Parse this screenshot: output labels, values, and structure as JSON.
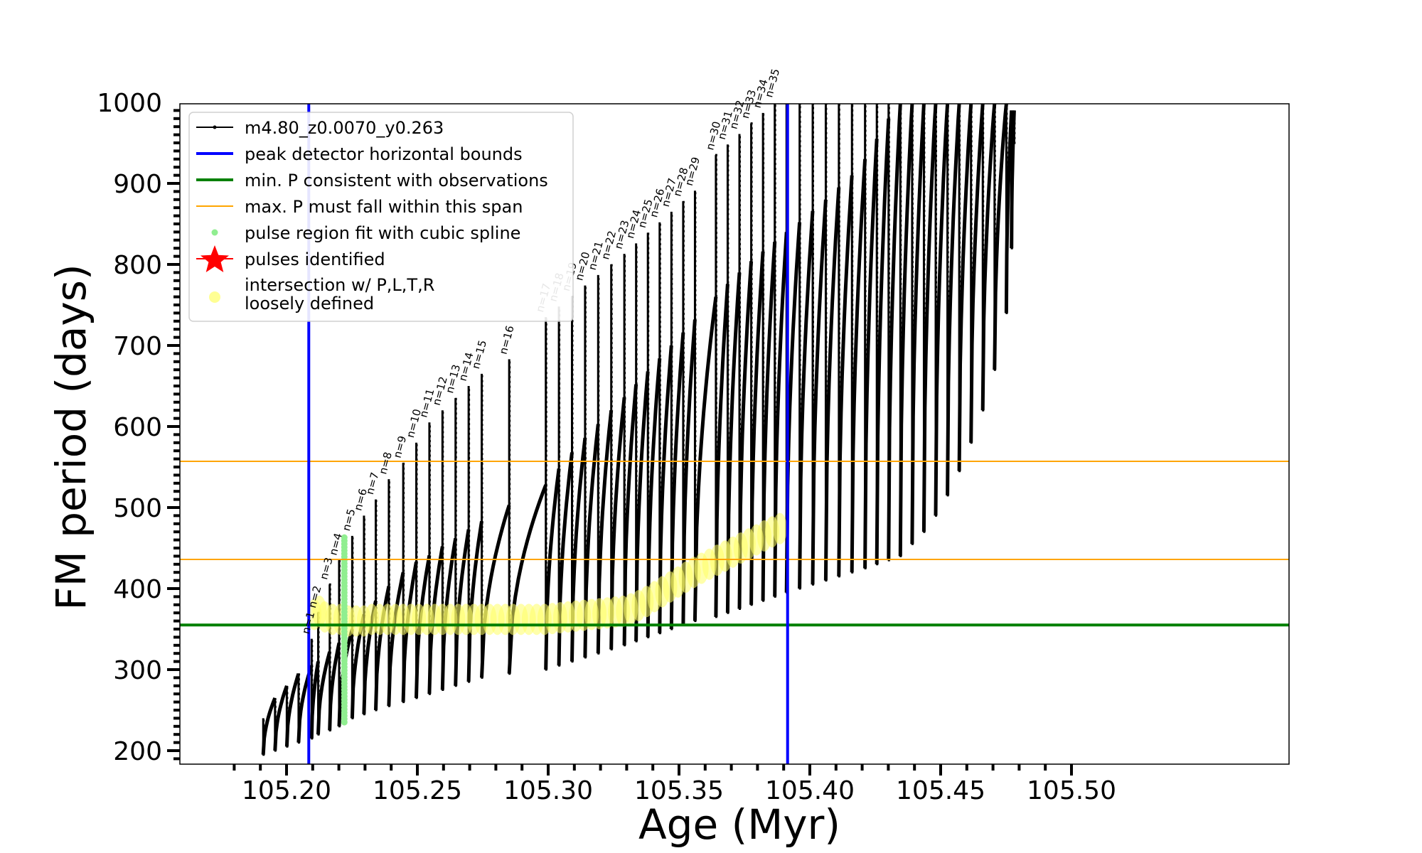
{
  "chart_data": {
    "type": "line",
    "xlabel": "Age (Myr)",
    "ylabel": "FM period (days)",
    "xlim": [
      105.1785,
      105.5125
    ],
    "ylim": [
      183,
      1000
    ],
    "x_ticks": [
      "105.20",
      "105.25",
      "105.30",
      "105.35",
      "105.40",
      "105.45",
      "105.50"
    ],
    "x_tick_values": [
      105.2,
      105.25,
      105.3,
      105.35,
      105.4,
      105.45,
      105.5
    ],
    "y_ticks": [
      "200",
      "300",
      "400",
      "500",
      "600",
      "700",
      "800",
      "900",
      "1000"
    ],
    "y_tick_values": [
      200,
      300,
      400,
      500,
      600,
      700,
      800,
      900,
      1000
    ],
    "legend": {
      "placement": "top-left",
      "entries": [
        {
          "label": "m4.80_z0.0070_y0.263",
          "color": "#000000",
          "kind": "line-marker"
        },
        {
          "label": "peak detector horizontal bounds",
          "color": "#0000ff",
          "kind": "line"
        },
        {
          "label": "min. P consistent with observations",
          "color": "#008000",
          "kind": "line"
        },
        {
          "label": "max. P must fall within this span",
          "color": "#ffa500",
          "kind": "thin-line"
        },
        {
          "label": "pulse region fit with cubic spline",
          "color": "#90ee90",
          "kind": "dot"
        },
        {
          "label": "pulses identified",
          "color": "#ff0000",
          "kind": "star"
        },
        {
          "label": "intersection w/ P,L,T,R\nloosely defined",
          "color": "#ffff66",
          "kind": "circle"
        }
      ]
    },
    "vertical_lines": {
      "color": "#0000ff",
      "x": [
        105.2085,
        105.3915
      ]
    },
    "min_period_line": {
      "color": "#008000",
      "y": 355
    },
    "max_period_span": {
      "color": "#ffa500",
      "y": [
        436,
        557
      ]
    },
    "series": [
      {
        "name": "m4.80_z0.0070_y0.263",
        "color": "#000000",
        "pulses": [
          {
            "x": 105.1911,
            "min": 195,
            "max": 240,
            "base": 240
          },
          {
            "x": 105.1956,
            "min": 200,
            "max": 265,
            "base": 265
          },
          {
            "x": 105.2001,
            "min": 205,
            "max": 280,
            "base": 280
          },
          {
            "x": 105.2046,
            "min": 210,
            "max": 295,
            "base": 295
          },
          {
            "x": 105.2096,
            "min": 215,
            "max": 338,
            "base": 305,
            "label": "n=1"
          },
          {
            "x": 105.2121,
            "min": 220,
            "max": 370,
            "base": 310,
            "label": "n=2"
          },
          {
            "x": 105.2165,
            "min": 225,
            "max": 405,
            "base": 322,
            "label": "n=3"
          },
          {
            "x": 105.2201,
            "min": 230,
            "max": 435,
            "base": 333,
            "label": "n=4"
          },
          {
            "x": 105.2251,
            "min": 240,
            "max": 465,
            "base": 350,
            "label": "n=5"
          },
          {
            "x": 105.2296,
            "min": 245,
            "max": 490,
            "base": 368,
            "label": "n=6"
          },
          {
            "x": 105.2341,
            "min": 250,
            "max": 510,
            "base": 385,
            "label": "n=7"
          },
          {
            "x": 105.2391,
            "min": 255,
            "max": 535,
            "base": 403,
            "label": "n=8"
          },
          {
            "x": 105.2446,
            "min": 260,
            "max": 555,
            "base": 420,
            "label": "n=9"
          },
          {
            "x": 105.2496,
            "min": 265,
            "max": 580,
            "base": 433,
            "label": "n=10"
          },
          {
            "x": 105.2546,
            "min": 270,
            "max": 605,
            "base": 441,
            "label": "n=11"
          },
          {
            "x": 105.2596,
            "min": 275,
            "max": 620,
            "base": 452,
            "label": "n=12"
          },
          {
            "x": 105.2646,
            "min": 280,
            "max": 635,
            "base": 462,
            "label": "n=13"
          },
          {
            "x": 105.2696,
            "min": 285,
            "max": 650,
            "base": 473,
            "label": "n=14"
          },
          {
            "x": 105.2746,
            "min": 290,
            "max": 665,
            "base": 483,
            "label": "n=15"
          },
          {
            "x": 105.2851,
            "min": 295,
            "max": 683,
            "base": 503,
            "label": "n=16"
          },
          {
            "x": 105.2991,
            "min": 300,
            "max": 735,
            "base": 528,
            "label": "n=17"
          },
          {
            "x": 105.3041,
            "min": 305,
            "max": 748,
            "base": 548,
            "label": "n=18"
          },
          {
            "x": 105.3091,
            "min": 310,
            "max": 761,
            "base": 568,
            "label": "n=19"
          },
          {
            "x": 105.3141,
            "min": 315,
            "max": 774,
            "base": 586,
            "label": "n=20"
          },
          {
            "x": 105.3191,
            "min": 320,
            "max": 787,
            "base": 603,
            "label": "n=21"
          },
          {
            "x": 105.3241,
            "min": 325,
            "max": 800,
            "base": 620,
            "label": "n=22"
          },
          {
            "x": 105.3291,
            "min": 330,
            "max": 813,
            "base": 636,
            "label": "n=23"
          },
          {
            "x": 105.3336,
            "min": 335,
            "max": 826,
            "base": 652,
            "label": "n=24"
          },
          {
            "x": 105.3381,
            "min": 340,
            "max": 839,
            "base": 668,
            "label": "n=25"
          },
          {
            "x": 105.3426,
            "min": 345,
            "max": 852,
            "base": 684,
            "label": "n=26"
          },
          {
            "x": 105.3471,
            "min": 350,
            "max": 865,
            "base": 700,
            "label": "n=27"
          },
          {
            "x": 105.3516,
            "min": 355,
            "max": 878,
            "base": 716,
            "label": "n=28"
          },
          {
            "x": 105.3561,
            "min": 360,
            "max": 891,
            "base": 732,
            "label": "n=29"
          },
          {
            "x": 105.3641,
            "min": 365,
            "max": 935,
            "base": 760,
            "label": "n=30"
          },
          {
            "x": 105.3686,
            "min": 370,
            "max": 948,
            "base": 776,
            "label": "n=31"
          },
          {
            "x": 105.3731,
            "min": 375,
            "max": 961,
            "base": 790,
            "label": "n=32"
          },
          {
            "x": 105.3776,
            "min": 380,
            "max": 974,
            "base": 804,
            "label": "n=33"
          },
          {
            "x": 105.3821,
            "min": 385,
            "max": 987,
            "base": 816,
            "label": "n=34"
          },
          {
            "x": 105.3866,
            "min": 390,
            "max": 1000,
            "base": 828,
            "label": "n=35"
          },
          {
            "x": 105.3911,
            "min": 395,
            "max": 1000,
            "base": 840
          },
          {
            "x": 105.3961,
            "min": 400,
            "max": 1000,
            "base": 852
          },
          {
            "x": 105.4011,
            "min": 405,
            "max": 1000,
            "base": 866
          },
          {
            "x": 105.4061,
            "min": 410,
            "max": 1000,
            "base": 880
          },
          {
            "x": 105.4111,
            "min": 415,
            "max": 1000,
            "base": 895
          },
          {
            "x": 105.4161,
            "min": 420,
            "max": 1000,
            "base": 910
          },
          {
            "x": 105.4211,
            "min": 425,
            "max": 1000,
            "base": 930
          },
          {
            "x": 105.4256,
            "min": 430,
            "max": 1000,
            "base": 955
          },
          {
            "x": 105.4301,
            "min": 435,
            "max": 1000,
            "base": 980
          },
          {
            "x": 105.4346,
            "min": 440,
            "max": 1000,
            "base": 1000
          },
          {
            "x": 105.4391,
            "min": 455,
            "max": 1000,
            "base": 1000
          },
          {
            "x": 105.4436,
            "min": 470,
            "max": 1000,
            "base": 1000
          },
          {
            "x": 105.4481,
            "min": 490,
            "max": 1000,
            "base": 1000
          },
          {
            "x": 105.4526,
            "min": 515,
            "max": 1000,
            "base": 1000
          },
          {
            "x": 105.4571,
            "min": 545,
            "max": 1000,
            "base": 1000
          },
          {
            "x": 105.4616,
            "min": 580,
            "max": 1000,
            "base": 1000
          },
          {
            "x": 105.4661,
            "min": 620,
            "max": 1000,
            "base": 1000
          },
          {
            "x": 105.4706,
            "min": 670,
            "max": 1000,
            "base": 1000
          },
          {
            "x": 105.4751,
            "min": 740,
            "max": 1000,
            "base": 1000
          },
          {
            "x": 105.4771,
            "min": 820,
            "max": 990,
            "base": 990
          },
          {
            "x": 105.4781,
            "min": 950,
            "max": 990,
            "base": 990
          }
        ]
      },
      {
        "name": "pulse region fit with cubic spline",
        "color": "#90ee90",
        "x": 105.2221,
        "y_range": [
          235,
          465
        ]
      },
      {
        "name": "intersection w/ P,L,T,R loosely defined",
        "color": "#ffff66",
        "points": [
          {
            "x": 105.2106,
            "y": 368
          },
          {
            "x": 105.2126,
            "y": 372
          },
          {
            "x": 105.2146,
            "y": 365
          },
          {
            "x": 105.2176,
            "y": 362
          },
          {
            "x": 105.2206,
            "y": 362
          },
          {
            "x": 105.2236,
            "y": 360
          },
          {
            "x": 105.2266,
            "y": 360
          },
          {
            "x": 105.2296,
            "y": 360
          },
          {
            "x": 105.2326,
            "y": 362
          },
          {
            "x": 105.2356,
            "y": 362
          },
          {
            "x": 105.2386,
            "y": 362
          },
          {
            "x": 105.2416,
            "y": 362
          },
          {
            "x": 105.2446,
            "y": 362
          },
          {
            "x": 105.2476,
            "y": 362
          },
          {
            "x": 105.2506,
            "y": 362
          },
          {
            "x": 105.2536,
            "y": 362
          },
          {
            "x": 105.2566,
            "y": 362
          },
          {
            "x": 105.2596,
            "y": 362
          },
          {
            "x": 105.2626,
            "y": 362
          },
          {
            "x": 105.2656,
            "y": 362
          },
          {
            "x": 105.2686,
            "y": 362
          },
          {
            "x": 105.2716,
            "y": 362
          },
          {
            "x": 105.2746,
            "y": 362
          },
          {
            "x": 105.2776,
            "y": 362
          },
          {
            "x": 105.2806,
            "y": 362
          },
          {
            "x": 105.2836,
            "y": 362
          },
          {
            "x": 105.2866,
            "y": 362
          },
          {
            "x": 105.2896,
            "y": 362
          },
          {
            "x": 105.2926,
            "y": 362
          },
          {
            "x": 105.2956,
            "y": 362
          },
          {
            "x": 105.2986,
            "y": 362
          },
          {
            "x": 105.3016,
            "y": 363
          },
          {
            "x": 105.3046,
            "y": 364
          },
          {
            "x": 105.3076,
            "y": 365
          },
          {
            "x": 105.3106,
            "y": 366
          },
          {
            "x": 105.3136,
            "y": 367
          },
          {
            "x": 105.3166,
            "y": 368
          },
          {
            "x": 105.3196,
            "y": 369
          },
          {
            "x": 105.3226,
            "y": 370
          },
          {
            "x": 105.3256,
            "y": 371
          },
          {
            "x": 105.3286,
            "y": 372
          },
          {
            "x": 105.3316,
            "y": 375
          },
          {
            "x": 105.3346,
            "y": 379
          },
          {
            "x": 105.3376,
            "y": 384
          },
          {
            "x": 105.3406,
            "y": 390
          },
          {
            "x": 105.3436,
            "y": 396
          },
          {
            "x": 105.3466,
            "y": 402
          },
          {
            "x": 105.3496,
            "y": 408
          },
          {
            "x": 105.3526,
            "y": 414
          },
          {
            "x": 105.3556,
            "y": 420
          },
          {
            "x": 105.3586,
            "y": 425
          },
          {
            "x": 105.3616,
            "y": 430
          },
          {
            "x": 105.3646,
            "y": 435
          },
          {
            "x": 105.3676,
            "y": 440
          },
          {
            "x": 105.3706,
            "y": 445
          },
          {
            "x": 105.3736,
            "y": 450
          },
          {
            "x": 105.3766,
            "y": 455
          },
          {
            "x": 105.3796,
            "y": 460
          },
          {
            "x": 105.3826,
            "y": 465
          },
          {
            "x": 105.3856,
            "y": 470
          },
          {
            "x": 105.3886,
            "y": 474
          }
        ]
      }
    ]
  }
}
